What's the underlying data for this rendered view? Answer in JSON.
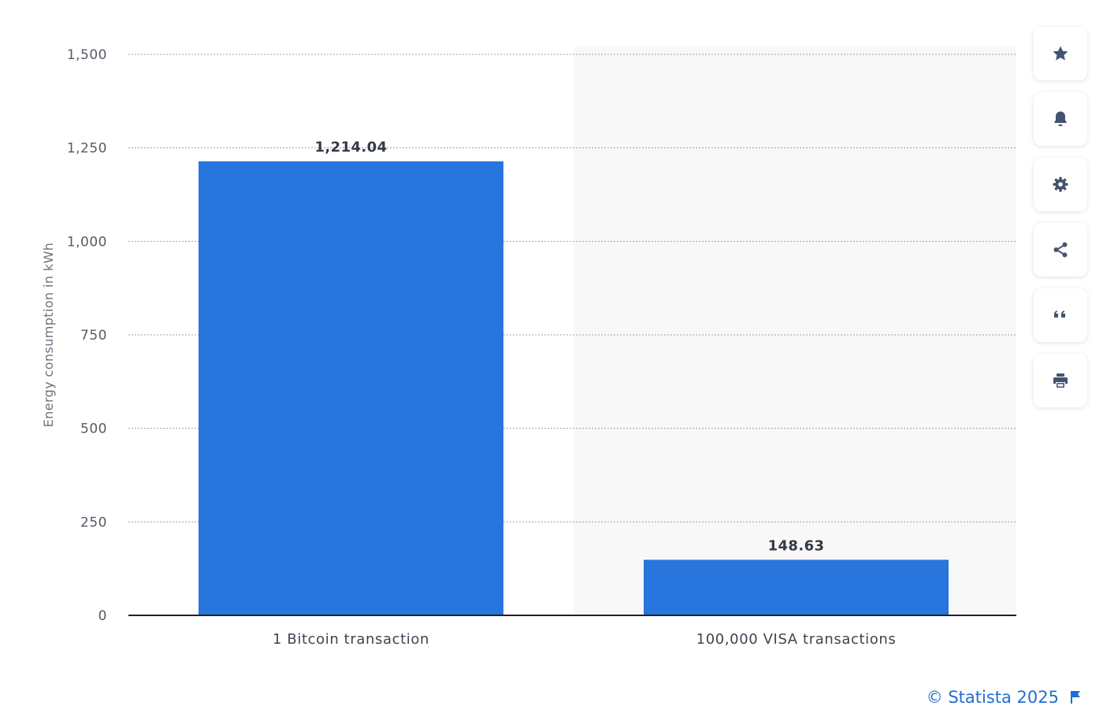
{
  "chart_data": {
    "type": "bar",
    "categories": [
      "1 Bitcoin transaction",
      "100,000 VISA transactions"
    ],
    "values": [
      1214.04,
      148.63
    ],
    "value_labels": [
      "1,214.04",
      "148.63"
    ],
    "ylabel": "Energy consumption in kWh",
    "ylim": [
      0,
      1500
    ],
    "yticks": [
      0,
      250,
      500,
      750,
      1000,
      1250,
      1500
    ],
    "ytick_labels": [
      "0",
      "250",
      "500",
      "750",
      "1,000",
      "1,250",
      "1,500"
    ],
    "grid": true,
    "bar_color": "#2875dd"
  },
  "toolbar": {
    "buttons": [
      {
        "name": "favorite-button",
        "icon": "star-icon"
      },
      {
        "name": "notification-button",
        "icon": "bell-icon"
      },
      {
        "name": "settings-button",
        "icon": "gear-icon"
      },
      {
        "name": "share-button",
        "icon": "share-icon"
      },
      {
        "name": "cite-button",
        "icon": "quote-icon"
      },
      {
        "name": "print-button",
        "icon": "printer-icon"
      }
    ],
    "icon_color": "#43546e"
  },
  "footer": {
    "credit": "© Statista 2025",
    "credit_color": "#1f6fd6"
  }
}
